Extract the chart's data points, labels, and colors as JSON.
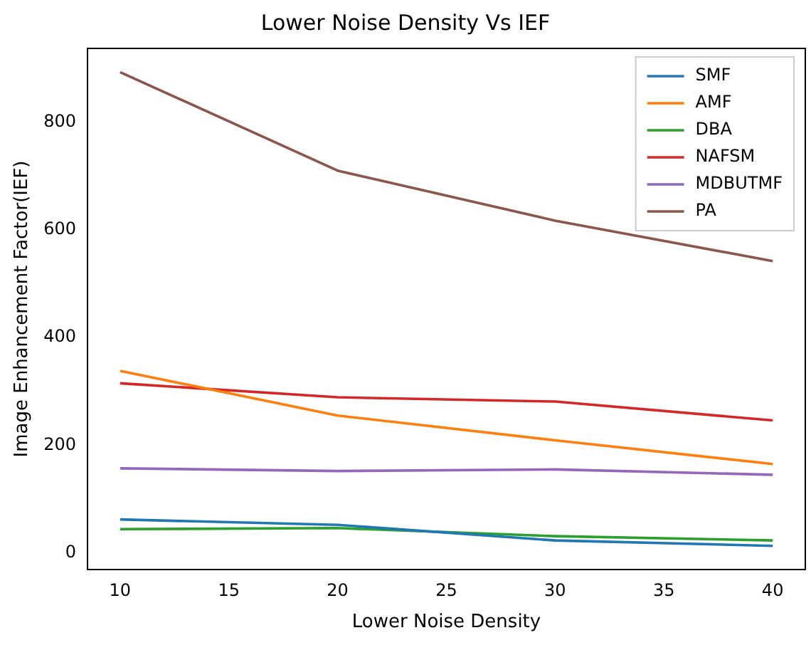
{
  "chart_data": {
    "type": "line",
    "title": "Lower Noise Density Vs IEF",
    "xlabel": "Lower Noise Density",
    "ylabel": "Image Enhancement Factor(IEF)",
    "x": [
      10,
      20,
      30,
      40
    ],
    "series": [
      {
        "name": "SMF",
        "color": "#1f77b4",
        "values": [
          62,
          52,
          23,
          13
        ]
      },
      {
        "name": "AMF",
        "color": "#ff7f0e",
        "values": [
          338,
          255,
          209,
          165
        ]
      },
      {
        "name": "DBA",
        "color": "#2ca02c",
        "values": [
          44,
          46,
          31,
          23
        ]
      },
      {
        "name": "NAFSM",
        "color": "#d62728",
        "values": [
          315,
          289,
          281,
          246
        ]
      },
      {
        "name": "MDBUTMF",
        "color": "#9467bd",
        "values": [
          157,
          152,
          155,
          145
        ]
      },
      {
        "name": "PA",
        "color": "#8c564b",
        "values": [
          893,
          710,
          617,
          542
        ]
      }
    ],
    "xlim": [
      8.5,
      41.5
    ],
    "ylim": [
      -31,
      937
    ],
    "xticks": [
      10,
      15,
      20,
      25,
      30,
      35,
      40
    ],
    "yticks": [
      0,
      200,
      400,
      600,
      800
    ],
    "legend": "top right",
    "grid": false,
    "marker": "none",
    "line_style": "solid"
  }
}
